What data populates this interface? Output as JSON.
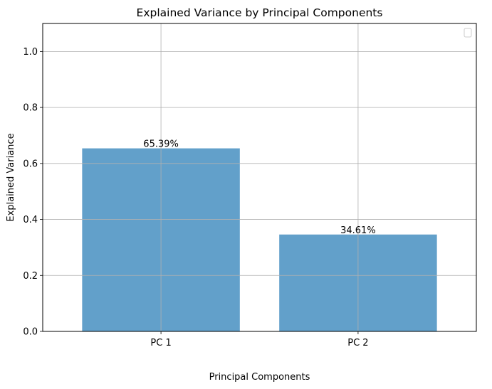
{
  "chart_data": {
    "type": "bar",
    "title": "Explained Variance by Principal Components",
    "xlabel": "Principal Components",
    "ylabel": "Explained Variance",
    "categories": [
      "PC 1",
      "PC 2"
    ],
    "values": [
      0.6539,
      0.3461
    ],
    "bar_labels": [
      "65.39%",
      "34.61%"
    ],
    "ylim": [
      0,
      1.1
    ],
    "yticks": [
      0.0,
      0.2,
      0.4,
      0.6,
      0.8,
      1.0
    ],
    "ytick_labels": [
      "0.0",
      "0.2",
      "0.4",
      "0.6",
      "0.8",
      "1.0"
    ],
    "grid": true,
    "legend": "top-right",
    "bar_color": "#1f77b4",
    "bar_alpha": 0.7
  }
}
